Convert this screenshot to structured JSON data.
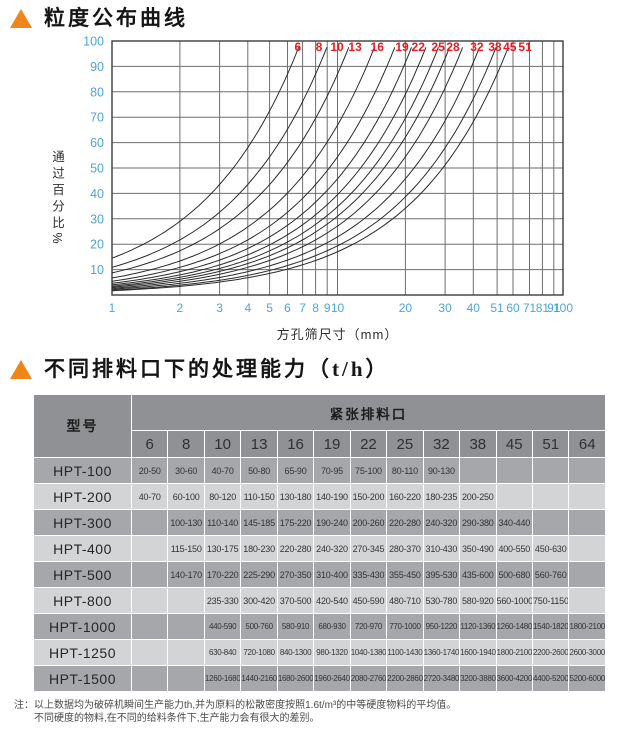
{
  "colors": {
    "accent_orange": "#f08519",
    "header_bg": "#8f9194",
    "row_dark": "#a5a7aa",
    "row_light": "#d3d4d6",
    "axis_blue": "#4ba6d8",
    "label_red": "#e8191f"
  },
  "section1": {
    "title": "粒度公布曲线"
  },
  "section2": {
    "title": "不同排料口下的处理能力（t/h）"
  },
  "chart_data": {
    "type": "line",
    "title": "粒度公布曲线",
    "xlabel": "方孔筛尺寸（mm）",
    "ylabel": "通过百分比%",
    "x_scale": "log",
    "xlim": [
      1,
      100
    ],
    "ylim": [
      0,
      100
    ],
    "grid": true,
    "x_ticks": [
      1,
      2,
      3,
      4,
      5,
      6,
      7,
      8,
      9,
      10,
      20,
      30,
      40,
      51,
      60,
      71,
      81,
      91,
      100
    ],
    "y_ticks": [
      10,
      20,
      30,
      40,
      50,
      60,
      70,
      80,
      90,
      100
    ],
    "curve_labels": [
      "6",
      "8",
      "10",
      "13",
      "16",
      "19",
      "22",
      "25",
      "28",
      "32",
      "38",
      "45",
      "51"
    ],
    "axis_tick_color": "#4ba6d8",
    "curve_label_color": "#e8191f",
    "curve_color": "#2b2b2b",
    "grid_color": "#6e6e6e",
    "series": [
      {
        "name": "6",
        "points": [
          [
            1,
            14.5
          ],
          [
            2,
            29
          ],
          [
            4,
            58
          ],
          [
            6.73,
            97.5
          ]
        ]
      },
      {
        "name": "8",
        "points": [
          [
            1,
            10.9
          ],
          [
            2,
            21.7
          ],
          [
            4,
            43.5
          ],
          [
            8,
            87
          ],
          [
            8.97,
            97.5
          ]
        ]
      },
      {
        "name": "10",
        "points": [
          [
            1,
            8.7
          ],
          [
            2,
            17.4
          ],
          [
            4,
            34.8
          ],
          [
            8,
            69.6
          ],
          [
            11.21,
            97.5
          ]
        ]
      },
      {
        "name": "13",
        "points": [
          [
            1,
            6.7
          ],
          [
            2,
            13.4
          ],
          [
            4,
            26.8
          ],
          [
            8,
            53.5
          ],
          [
            14.58,
            97.5
          ]
        ]
      },
      {
        "name": "16",
        "points": [
          [
            1,
            5.4
          ],
          [
            2,
            10.9
          ],
          [
            4,
            21.7
          ],
          [
            8,
            43.5
          ],
          [
            16,
            87
          ],
          [
            17.94,
            97.5
          ]
        ]
      },
      {
        "name": "19",
        "points": [
          [
            1,
            4.6
          ],
          [
            2,
            9.2
          ],
          [
            4,
            18.3
          ],
          [
            8,
            36.6
          ],
          [
            16,
            73.2
          ],
          [
            21.3,
            97.5
          ]
        ]
      },
      {
        "name": "22",
        "points": [
          [
            1,
            4
          ],
          [
            2,
            7.9
          ],
          [
            4,
            15.8
          ],
          [
            8,
            31.6
          ],
          [
            16,
            63.2
          ],
          [
            24.66,
            97.5
          ]
        ]
      },
      {
        "name": "25",
        "points": [
          [
            1,
            3.5
          ],
          [
            2,
            7
          ],
          [
            4,
            13.9
          ],
          [
            8,
            27.8
          ],
          [
            16,
            55.7
          ],
          [
            28.03,
            97.5
          ]
        ]
      },
      {
        "name": "28",
        "points": [
          [
            1,
            3.1
          ],
          [
            2,
            6.2
          ],
          [
            4,
            12.4
          ],
          [
            8,
            24.8
          ],
          [
            16,
            49.7
          ],
          [
            31.4,
            97.5
          ]
        ]
      },
      {
        "name": "32",
        "points": [
          [
            1,
            2.7
          ],
          [
            2,
            5.4
          ],
          [
            4,
            10.9
          ],
          [
            8,
            21.7
          ],
          [
            16,
            43.5
          ],
          [
            32,
            87
          ],
          [
            35.88,
            97.5
          ]
        ]
      },
      {
        "name": "38",
        "points": [
          [
            1,
            2.3
          ],
          [
            2,
            4.6
          ],
          [
            4,
            9.2
          ],
          [
            8,
            18.3
          ],
          [
            16,
            36.6
          ],
          [
            32,
            73.2
          ],
          [
            42.62,
            97.5
          ]
        ]
      },
      {
        "name": "45",
        "points": [
          [
            1,
            1.9
          ],
          [
            2,
            3.9
          ],
          [
            4,
            7.7
          ],
          [
            8,
            15.5
          ],
          [
            16,
            30.9
          ],
          [
            32,
            61.8
          ],
          [
            50.46,
            97.5
          ]
        ]
      },
      {
        "name": "51",
        "points": [
          [
            1,
            1.7
          ],
          [
            2,
            3.4
          ],
          [
            4,
            6.8
          ],
          [
            8,
            13.6
          ],
          [
            16,
            27.3
          ],
          [
            32,
            54.6
          ],
          [
            57.18,
            97.5
          ]
        ]
      }
    ]
  },
  "table": {
    "model_header": "型号",
    "group_header": "紧张排料口",
    "columns": [
      "6",
      "8",
      "10",
      "13",
      "16",
      "19",
      "22",
      "25",
      "32",
      "38",
      "45",
      "51",
      "64"
    ],
    "rows": [
      {
        "model": "HPT-100",
        "values": [
          "20-50",
          "30-60",
          "40-70",
          "50-80",
          "65-90",
          "70-95",
          "75-100",
          "80-110",
          "90-130",
          "",
          "",
          "",
          ""
        ]
      },
      {
        "model": "HPT-200",
        "values": [
          "40-70",
          "60-100",
          "80-120",
          "110-150",
          "130-180",
          "140-190",
          "150-200",
          "160-220",
          "180-235",
          "200-250",
          "",
          "",
          ""
        ]
      },
      {
        "model": "HPT-300",
        "values": [
          "",
          "100-130",
          "110-140",
          "145-185",
          "175-220",
          "190-240",
          "200-260",
          "220-280",
          "240-320",
          "290-380",
          "340-440",
          "",
          ""
        ]
      },
      {
        "model": "HPT-400",
        "values": [
          "",
          "115-150",
          "130-175",
          "180-230",
          "220-280",
          "240-320",
          "270-345",
          "280-370",
          "310-430",
          "350-490",
          "400-550",
          "450-630",
          ""
        ]
      },
      {
        "model": "HPT-500",
        "values": [
          "",
          "140-170",
          "170-220",
          "225-290",
          "270-350",
          "310-400",
          "335-430",
          "355-450",
          "395-530",
          "435-600",
          "500-680",
          "560-760",
          ""
        ]
      },
      {
        "model": "HPT-800",
        "values": [
          "",
          "",
          "235-330",
          "300-420",
          "370-500",
          "420-540",
          "450-590",
          "480-710",
          "530-780",
          "580-920",
          "560-1000",
          "750-1150",
          ""
        ]
      },
      {
        "model": "HPT-1000",
        "values": [
          "",
          "",
          "440-590",
          "500-760",
          "580-910",
          "680-930",
          "720-970",
          "770-1000",
          "950-1220",
          "1120-1360",
          "1260-1480",
          "1540-1820",
          "1800-2100"
        ]
      },
      {
        "model": "HPT-1250",
        "values": [
          "",
          "",
          "630-840",
          "720-1080",
          "840-1300",
          "980-1320",
          "1040-1380",
          "1100-1430",
          "1360-1740",
          "1600-1940",
          "1800-2100",
          "2200-2600",
          "2600-3000"
        ]
      },
      {
        "model": "HPT-1500",
        "values": [
          "",
          "",
          "1260-1680",
          "1440-2160",
          "1680-2600",
          "1960-2640",
          "2080-2760",
          "2200-2860",
          "2720-3480",
          "3200-3880",
          "3600-4200",
          "4400-5200",
          "5200-6000"
        ]
      }
    ]
  },
  "note": {
    "prefix": "注：",
    "line1": "以上数据均为破碎机瞬间生产能力th,并为原料的松散密度按照1.6t/m³的中等硬度物料的平均值。",
    "line2": "不同硬度的物料,在不同的给料条件下,生产能力会有很大的差别。"
  }
}
